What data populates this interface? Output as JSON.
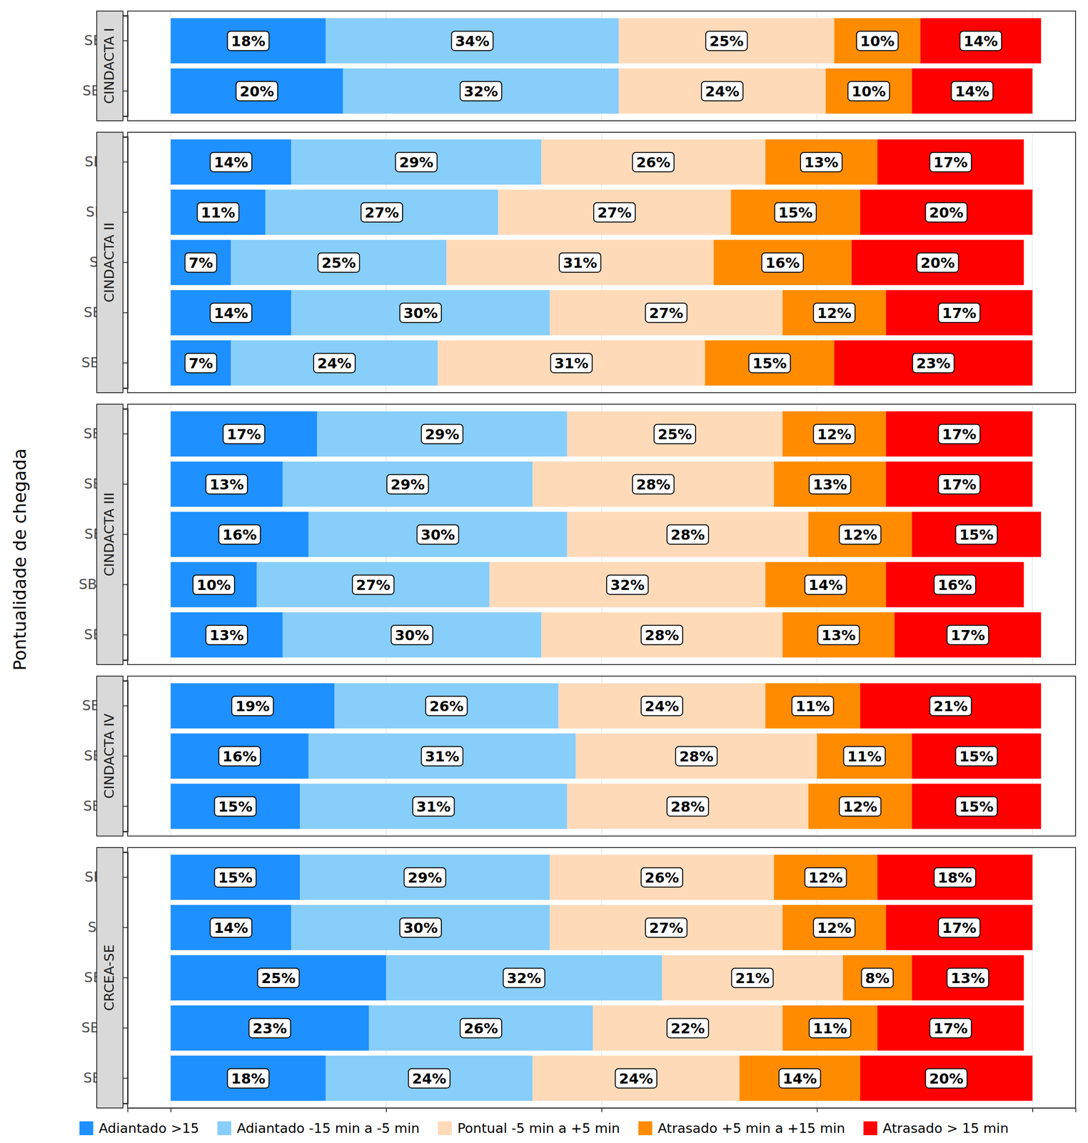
{
  "chart_data": {
    "type": "bar",
    "orientation": "horizontal",
    "stacked": true,
    "data_labels": true,
    "grid": true,
    "legend": "bottom",
    "tick_labels": "y",
    "ylabel": "Pontualidade de chegada",
    "xlim": [
      -5,
      105
    ],
    "xticks": [
      0,
      25,
      50,
      75,
      100
    ],
    "series": [
      {
        "name": "Adiantado >15",
        "color": "#1E90FF"
      },
      {
        "name": "Adiantado -15 min a -5 min",
        "color": "#87CEFA"
      },
      {
        "name": "Pontual -5 min a +5 min",
        "color": "#FFDAB9"
      },
      {
        "name": "Atrasado +5 min a +15 min",
        "color": "#FF8C00"
      },
      {
        "name": "Atrasado > 15 min",
        "color": "#FF0000"
      }
    ],
    "facets": [
      {
        "name": "CINDACTA I",
        "categories": [
          "SBCF",
          "SBBR"
        ],
        "series": [
          {
            "values": [
              18,
              20
            ],
            "value_labels": [
              "18%",
              "20%"
            ]
          },
          {
            "values": [
              34,
              32
            ],
            "value_labels": [
              "34%",
              "32%"
            ]
          },
          {
            "values": [
              25,
              24
            ],
            "value_labels": [
              "25%",
              "24%"
            ]
          },
          {
            "values": [
              10,
              10
            ],
            "value_labels": [
              "10%",
              "10%"
            ]
          },
          {
            "values": [
              14,
              14
            ],
            "value_labels": [
              "14%",
              "14%"
            ]
          }
        ]
      },
      {
        "name": "CINDACTA II",
        "categories": [
          "SBPA",
          "SBFL",
          "SBFI",
          "SBCT",
          "SBCG"
        ],
        "series": [
          {
            "values": [
              14,
              11,
              7,
              14,
              7
            ],
            "value_labels": [
              "14%",
              "11%",
              "7%",
              "14%",
              "7%"
            ]
          },
          {
            "values": [
              29,
              27,
              25,
              30,
              24
            ],
            "value_labels": [
              "29%",
              "27%",
              "25%",
              "30%",
              "24%"
            ]
          },
          {
            "values": [
              26,
              27,
              31,
              27,
              31
            ],
            "value_labels": [
              "26%",
              "27%",
              "31%",
              "27%",
              "31%"
            ]
          },
          {
            "values": [
              13,
              15,
              16,
              12,
              15
            ],
            "value_labels": [
              "13%",
              "15%",
              "16%",
              "12%",
              "15%"
            ]
          },
          {
            "values": [
              17,
              20,
              20,
              17,
              23
            ],
            "value_labels": [
              "17%",
              "20%",
              "20%",
              "17%",
              "23%"
            ]
          }
        ]
      },
      {
        "name": "CINDACTA III",
        "categories": [
          "SBSV",
          "SBRF",
          "SBPS",
          "SBMO",
          "SBFZ"
        ],
        "series": [
          {
            "values": [
              17,
              13,
              16,
              10,
              13
            ],
            "value_labels": [
              "17%",
              "13%",
              "16%",
              "10%",
              "13%"
            ]
          },
          {
            "values": [
              29,
              29,
              30,
              27,
              30
            ],
            "value_labels": [
              "29%",
              "29%",
              "30%",
              "27%",
              "30%"
            ]
          },
          {
            "values": [
              25,
              28,
              28,
              32,
              28
            ],
            "value_labels": [
              "25%",
              "28%",
              "28%",
              "32%",
              "28%"
            ]
          },
          {
            "values": [
              12,
              13,
              12,
              14,
              13
            ],
            "value_labels": [
              "12%",
              "13%",
              "12%",
              "14%",
              "13%"
            ]
          },
          {
            "values": [
              17,
              17,
              15,
              16,
              17
            ],
            "value_labels": [
              "17%",
              "17%",
              "15%",
              "16%",
              "17%"
            ]
          }
        ]
      },
      {
        "name": "CINDACTA IV",
        "categories": [
          "SBEG",
          "SBCY",
          "SBBE"
        ],
        "series": [
          {
            "values": [
              19,
              16,
              15
            ],
            "value_labels": [
              "19%",
              "16%",
              "15%"
            ]
          },
          {
            "values": [
              26,
              31,
              31
            ],
            "value_labels": [
              "26%",
              "31%",
              "31%"
            ]
          },
          {
            "values": [
              24,
              28,
              28
            ],
            "value_labels": [
              "24%",
              "28%",
              "28%"
            ]
          },
          {
            "values": [
              11,
              11,
              12
            ],
            "value_labels": [
              "11%",
              "11%",
              "12%"
            ]
          },
          {
            "values": [
              21,
              15,
              15
            ],
            "value_labels": [
              "21%",
              "15%",
              "15%"
            ]
          }
        ]
      },
      {
        "name": "CRCEA-SE",
        "categories": [
          "SBSP",
          "SBRJ",
          "SBKP",
          "SBGR",
          "SBGL"
        ],
        "series": [
          {
            "values": [
              15,
              14,
              25,
              23,
              18
            ],
            "value_labels": [
              "15%",
              "14%",
              "25%",
              "23%",
              "18%"
            ]
          },
          {
            "values": [
              29,
              30,
              32,
              26,
              24
            ],
            "value_labels": [
              "29%",
              "30%",
              "32%",
              "26%",
              "24%"
            ]
          },
          {
            "values": [
              26,
              27,
              21,
              22,
              24
            ],
            "value_labels": [
              "26%",
              "27%",
              "21%",
              "22%",
              "24%"
            ]
          },
          {
            "values": [
              12,
              12,
              8,
              11,
              14
            ],
            "value_labels": [
              "12%",
              "12%",
              "8%",
              "11%",
              "14%"
            ]
          },
          {
            "values": [
              18,
              17,
              13,
              17,
              20
            ],
            "value_labels": [
              "18%",
              "17%",
              "13%",
              "17%",
              "20%"
            ]
          }
        ]
      }
    ]
  }
}
